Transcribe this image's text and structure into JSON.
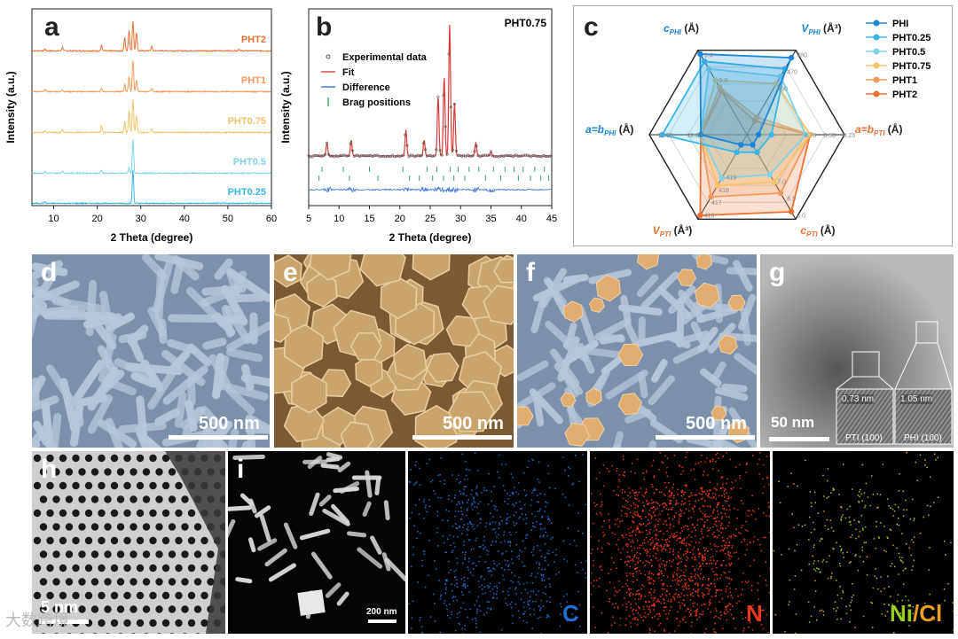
{
  "panels": {
    "a": {
      "label": "a",
      "ylabel": "Intensity (a.u.)",
      "xlabel": "2 Theta (degree)",
      "xticks": [
        "10",
        "20",
        "30",
        "40",
        "50",
        "60"
      ]
    },
    "b": {
      "label": "b",
      "title": "PHT0.75",
      "ylabel": "Intensity (a.u.)",
      "xlabel": "2 Theta (degree)",
      "xticks": [
        "5",
        "10",
        "15",
        "20",
        "25",
        "30",
        "35",
        "40",
        "45"
      ],
      "legend": [
        "Experimental data",
        "Fit",
        "Difference",
        "Brag positions"
      ]
    },
    "c": {
      "label": "c"
    },
    "d": {
      "label": "d",
      "scale": "500 nm"
    },
    "e": {
      "label": "e",
      "scale": "500 nm"
    },
    "f": {
      "label": "f",
      "scale": "500 nm"
    },
    "g": {
      "label": "g",
      "scale": "50 nm",
      "inset1_d": "0.73 nm",
      "inset1_name": "PTI (100)",
      "inset2_d": "1.05 nm",
      "inset2_name": "PHI (100)"
    },
    "h": {
      "label": "h",
      "scale": "5 nm"
    },
    "i": {
      "label": "i",
      "scale": "200 nm",
      "el_c": "C",
      "el_n": "N",
      "el_ni": "Ni",
      "el_sep": "/",
      "el_cl": "Cl"
    }
  },
  "colors": {
    "PHI": "#1a86d6",
    "PHT0.25": "#38b6e8",
    "PHT0.5": "#7fd3e6",
    "PHT0.75": "#f5c36a",
    "PHT1": "#f29a5c",
    "PHT2": "#ee7032"
  },
  "watermark": "大数跨境",
  "chart_data": [
    {
      "type": "line",
      "panel": "a",
      "xlabel": "2 Theta (degree)",
      "ylabel": "Intensity (a.u.)",
      "xlim": [
        5,
        60
      ],
      "series": [
        {
          "name": "PHT2",
          "peaks": [
            [
              8,
              0.05
            ],
            [
              12,
              0.1
            ],
            [
              21,
              0.15
            ],
            [
              26.3,
              0.35
            ],
            [
              27.3,
              0.55
            ],
            [
              28.2,
              0.8
            ],
            [
              29.0,
              0.5
            ],
            [
              32.5,
              0.12
            ],
            [
              52.5,
              0.05
            ]
          ]
        },
        {
          "name": "PHT1",
          "peaks": [
            [
              8,
              0.05
            ],
            [
              12,
              0.05
            ],
            [
              21,
              0.1
            ],
            [
              26.3,
              0.2
            ],
            [
              27.3,
              0.4
            ],
            [
              28.2,
              0.85
            ],
            [
              29.0,
              0.3
            ],
            [
              32.5,
              0.08
            ]
          ]
        },
        {
          "name": "PHT0.75",
          "peaks": [
            [
              8,
              0.05
            ],
            [
              12,
              0.08
            ],
            [
              21,
              0.2
            ],
            [
              26.3,
              0.3
            ],
            [
              27.3,
              0.6
            ],
            [
              28.2,
              0.9
            ],
            [
              29.0,
              0.45
            ],
            [
              32.5,
              0.1
            ]
          ]
        },
        {
          "name": "PHT0.5",
          "peaks": [
            [
              8,
              0.05
            ],
            [
              12,
              0.06
            ],
            [
              21,
              0.08
            ],
            [
              27.3,
              0.15
            ],
            [
              28.2,
              0.9
            ]
          ]
        },
        {
          "name": "PHT0.25",
          "peaks": [
            [
              8,
              0.04
            ],
            [
              28.2,
              0.9
            ]
          ]
        }
      ]
    },
    {
      "type": "line",
      "panel": "b",
      "title": "PHT0.75",
      "xlabel": "2 Theta (degree)",
      "ylabel": "Intensity (a.u.)",
      "xlim": [
        5,
        45
      ],
      "peaks": [
        [
          8,
          0.1
        ],
        [
          12,
          0.12
        ],
        [
          21,
          0.2
        ],
        [
          24,
          0.12
        ],
        [
          26.3,
          0.45
        ],
        [
          27.3,
          0.6
        ],
        [
          28.2,
          1.0
        ],
        [
          29.0,
          0.4
        ],
        [
          32.5,
          0.1
        ],
        [
          35,
          0.03
        ]
      ],
      "brag_positions_row1": [
        7.2,
        10.7,
        15,
        20.5,
        24.5,
        26.1,
        28.3,
        29.6,
        31.4,
        33,
        35.4,
        37.3,
        38.8,
        40.3,
        42.2,
        43.8
      ],
      "brag_positions_row2": [
        6.7,
        11.7,
        16.4,
        21.6,
        23.2,
        25.4,
        27.2,
        28.9,
        30.7,
        34.1,
        36.6,
        39.5,
        41.5,
        43.2,
        44.5
      ]
    },
    {
      "type": "radar",
      "panel": "c",
      "axes": [
        "c_PHI (Å)",
        "V_PHI (Å³)",
        "a=b_PTI (Å)",
        "c_PTI (Å)",
        "V_PTI (Å³)",
        "a=b_PHI (Å)"
      ],
      "axis_top_ticks": {
        "c_PHI": [
          "3.4",
          "3.3"
        ],
        "V_PHI": [
          "480",
          "470",
          "460"
        ],
        "a=b_PTI": [
          "8.25",
          "8.50",
          "8.75"
        ],
        "c_PTI": [
          "6.0",
          "6.5",
          "7.0"
        ],
        "V_PTI": [
          "416",
          "417",
          "418",
          "419"
        ],
        "a=b_PHI": [
          "12.50",
          "12.25"
        ]
      },
      "series": [
        {
          "name": "PHI",
          "values": [
            0.95,
            0.9,
            0.0,
            0.0,
            0.0,
            0.4
          ]
        },
        {
          "name": "PHT0.25",
          "values": [
            0.85,
            0.75,
            0.15,
            0.1,
            0.1,
            0.85
          ]
        },
        {
          "name": "PHT0.5",
          "values": [
            0.75,
            0.65,
            0.55,
            0.4,
            0.45,
            0.4
          ]
        },
        {
          "name": "PHT0.75",
          "values": [
            0.6,
            0.55,
            0.6,
            0.5,
            0.55,
            0.4
          ]
        },
        {
          "name": "PHT1",
          "values": [
            0.5,
            0.1,
            0.6,
            0.65,
            0.7,
            0.4
          ]
        },
        {
          "name": "PHT2",
          "values": [
            0.45,
            0.05,
            0.6,
            0.9,
            0.95,
            0.4
          ]
        }
      ]
    }
  ]
}
